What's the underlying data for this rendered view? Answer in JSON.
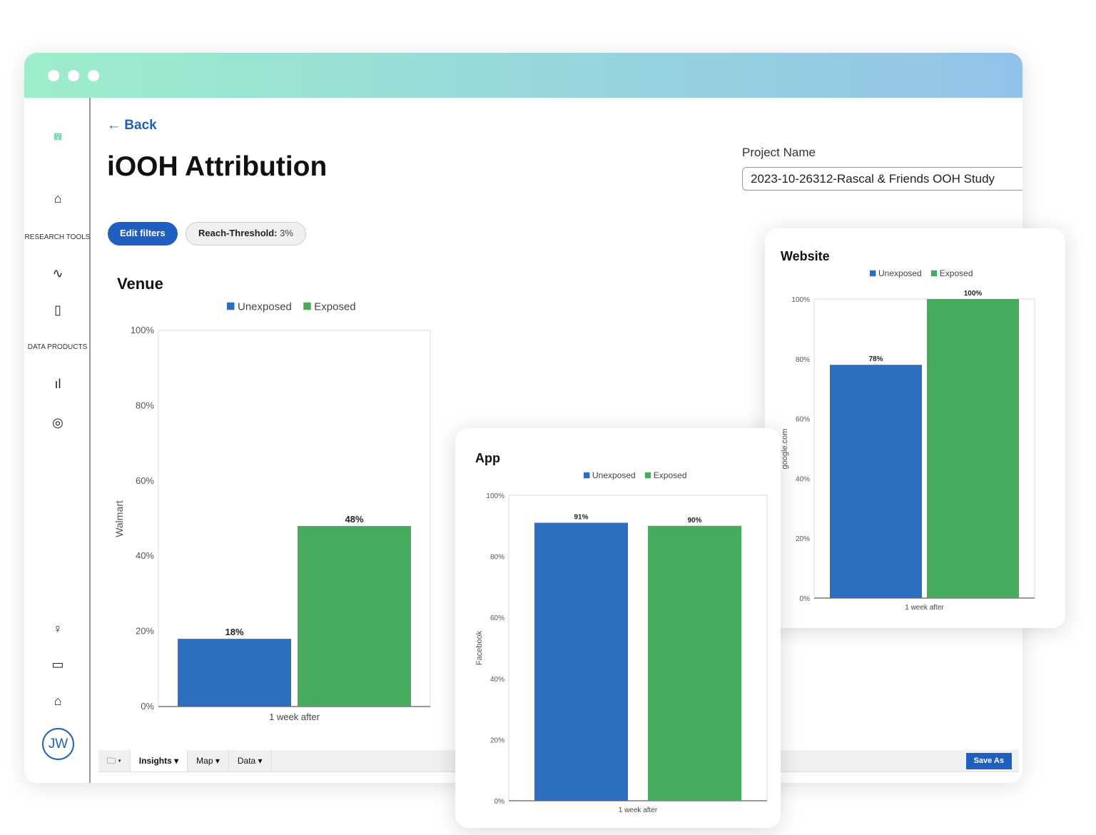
{
  "window": {
    "dots": 3
  },
  "sidebar": {
    "section_research": "RESEARCH TOOLS",
    "section_data": "DATA PRODUCTS",
    "avatar": "JW"
  },
  "header": {
    "back": "Back",
    "title": "iOOH Attribution",
    "project_label": "Project Name",
    "project_value": "2023-10-26312-Rascal & Friends OOH Study"
  },
  "filters": {
    "edit": "Edit filters",
    "threshold_label": "Reach-Threshold:",
    "threshold_value": "3%"
  },
  "toolbar": {
    "insights": "Insights",
    "map": "Map",
    "data": "Data",
    "save_as": "Save As"
  },
  "colors": {
    "unexposed": "#2c6ebf",
    "exposed": "#47ab5e",
    "accent": "#1f5fbf"
  },
  "chart_data": [
    {
      "type": "bar",
      "title": "Venue",
      "ylabel": "Walmart",
      "categories": [
        "1 week after"
      ],
      "ylim": [
        0,
        100
      ],
      "yticks": [
        "0%",
        "20%",
        "40%",
        "60%",
        "80%",
        "100%"
      ],
      "legend": "top",
      "series": [
        {
          "name": "Unexposed",
          "values": [
            18
          ],
          "labels": [
            "18%"
          ]
        },
        {
          "name": "Exposed",
          "values": [
            48
          ],
          "labels": [
            "48%"
          ]
        }
      ]
    },
    {
      "type": "bar",
      "title": "App",
      "ylabel": "Facebook",
      "categories": [
        "1 week after"
      ],
      "ylim": [
        0,
        100
      ],
      "yticks": [
        "0%",
        "20%",
        "40%",
        "60%",
        "80%",
        "100%"
      ],
      "legend": "top",
      "series": [
        {
          "name": "Unexposed",
          "values": [
            91
          ],
          "labels": [
            "91%"
          ]
        },
        {
          "name": "Exposed",
          "values": [
            90
          ],
          "labels": [
            "90%"
          ]
        }
      ]
    },
    {
      "type": "bar",
      "title": "Website",
      "ylabel": "google.com",
      "categories": [
        "1 week after"
      ],
      "ylim": [
        0,
        100
      ],
      "yticks": [
        "0%",
        "20%",
        "40%",
        "60%",
        "80%",
        "100%"
      ],
      "legend": "top",
      "series": [
        {
          "name": "Unexposed",
          "values": [
            78
          ],
          "labels": [
            "78%"
          ]
        },
        {
          "name": "Exposed",
          "values": [
            100
          ],
          "labels": [
            "100%"
          ]
        }
      ]
    }
  ]
}
